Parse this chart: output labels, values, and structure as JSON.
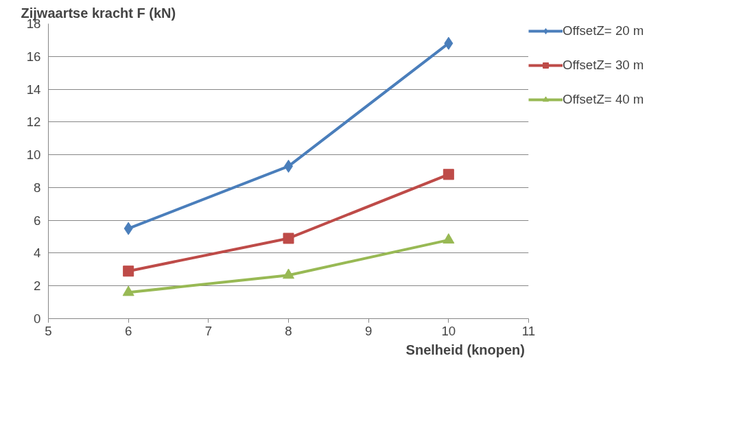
{
  "chart_data": {
    "type": "line",
    "ylabel": "Zijwaartse kracht F (kN)",
    "xlabel": "Snelheid  (knopen)",
    "x": [
      6,
      8,
      10
    ],
    "series": [
      {
        "name": "OffsetZ= 20 m",
        "color": "#4a7ebb",
        "marker": "diamond",
        "values": [
          5.5,
          9.3,
          16.8
        ]
      },
      {
        "name": "OffsetZ= 30 m",
        "color": "#be4b48",
        "marker": "square",
        "values": [
          2.9,
          4.9,
          8.8
        ]
      },
      {
        "name": "OffsetZ= 40 m",
        "color": "#98b954",
        "marker": "triangle",
        "values": [
          1.6,
          2.65,
          4.8
        ]
      }
    ],
    "xlim": [
      5,
      11
    ],
    "xticks": [
      5,
      6,
      7,
      8,
      9,
      10,
      11
    ],
    "ylim": [
      0,
      18
    ],
    "yticks": [
      0,
      2,
      4,
      6,
      8,
      10,
      12,
      14,
      16,
      18
    ],
    "grid": "y",
    "legend": "right",
    "line_style": "solid"
  }
}
